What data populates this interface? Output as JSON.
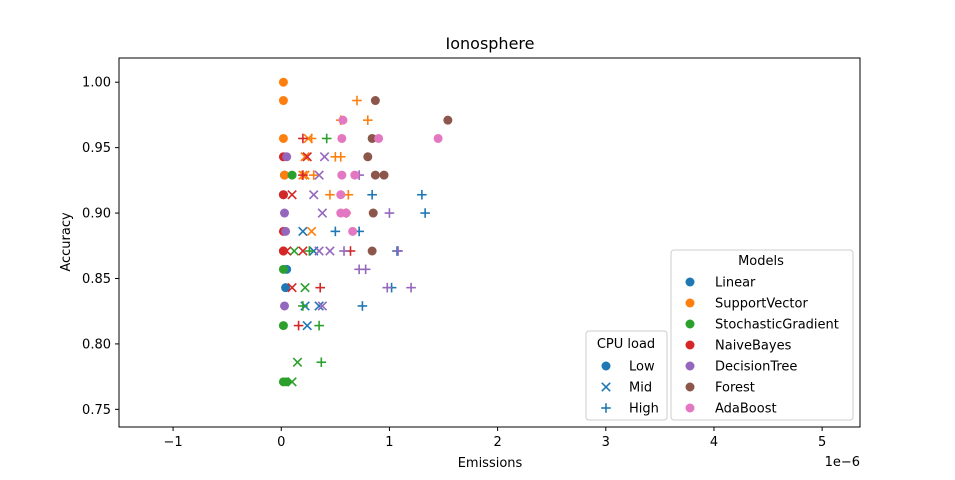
{
  "chart_data": {
    "type": "scatter",
    "title": "Ionosphere",
    "xlabel": "Emissions",
    "ylabel": "Accuracy",
    "x_offset_label": "1e−6",
    "x_scale_factor": 1e-06,
    "xlim": [
      -1.5,
      5.35
    ],
    "ylim": [
      0.7365,
      1.0185
    ],
    "x_ticks": [
      -1,
      0,
      1,
      2,
      3,
      4,
      5
    ],
    "x_tick_labels": [
      "−1",
      "0",
      "1",
      "2",
      "3",
      "4",
      "5"
    ],
    "y_ticks": [
      0.75,
      0.8,
      0.85,
      0.9,
      0.95,
      1.0
    ],
    "y_tick_labels": [
      "0.75",
      "0.80",
      "0.85",
      "0.90",
      "0.95",
      "1.00"
    ],
    "grid": false,
    "legend_models": {
      "title": "Models",
      "placement": "lower-right",
      "entries": [
        {
          "name": "Linear",
          "color": "#1f77b4"
        },
        {
          "name": "SupportVector",
          "color": "#ff7f0e"
        },
        {
          "name": "StochasticGradient",
          "color": "#2ca02c"
        },
        {
          "name": "NaiveBayes",
          "color": "#d62728"
        },
        {
          "name": "DecisionTree",
          "color": "#9467bd"
        },
        {
          "name": "Forest",
          "color": "#8c564b"
        },
        {
          "name": "AdaBoost",
          "color": "#e377c2"
        }
      ]
    },
    "legend_cpu": {
      "title": "CPU load",
      "placement": "lower-right",
      "entries": [
        {
          "name": "Low",
          "marker": "circle"
        },
        {
          "name": "Mid",
          "marker": "x"
        },
        {
          "name": "High",
          "marker": "plus"
        }
      ]
    },
    "series": [
      {
        "model": "Linear",
        "cpu": "Low",
        "points": [
          [
            0.02,
            0.914
          ],
          [
            0.03,
            0.929
          ],
          [
            0.04,
            0.843
          ],
          [
            0.05,
            0.857
          ],
          [
            0.02,
            0.871
          ]
        ]
      },
      {
        "model": "Linear",
        "cpu": "Mid",
        "points": [
          [
            0.22,
            0.829
          ],
          [
            0.24,
            0.814
          ],
          [
            0.3,
            0.871
          ],
          [
            0.2,
            0.886
          ],
          [
            0.35,
            0.829
          ]
        ]
      },
      {
        "model": "Linear",
        "cpu": "High",
        "points": [
          [
            1.3,
            0.914
          ],
          [
            1.33,
            0.9
          ],
          [
            0.84,
            0.914
          ],
          [
            1.02,
            0.843
          ],
          [
            0.75,
            0.829
          ],
          [
            1.07,
            0.871
          ],
          [
            0.5,
            0.886
          ],
          [
            0.72,
            0.886
          ]
        ]
      },
      {
        "model": "SupportVector",
        "cpu": "Low",
        "points": [
          [
            0.02,
            1.0
          ],
          [
            0.02,
            0.986
          ],
          [
            0.02,
            0.957
          ],
          [
            0.03,
            0.929
          ],
          [
            0.02,
            0.871
          ]
        ]
      },
      {
        "model": "SupportVector",
        "cpu": "Mid",
        "points": [
          [
            0.25,
            0.957
          ],
          [
            0.22,
            0.943
          ],
          [
            0.2,
            0.929
          ],
          [
            0.28,
            0.886
          ],
          [
            0.22,
            0.929
          ]
        ]
      },
      {
        "model": "SupportVector",
        "cpu": "High",
        "points": [
          [
            0.7,
            0.986
          ],
          [
            0.8,
            0.971
          ],
          [
            0.55,
            0.971
          ],
          [
            0.28,
            0.957
          ],
          [
            0.55,
            0.943
          ],
          [
            0.5,
            0.943
          ],
          [
            0.3,
            0.929
          ],
          [
            0.62,
            0.914
          ],
          [
            0.45,
            0.914
          ],
          [
            0.6,
            0.9
          ]
        ]
      },
      {
        "model": "StochasticGradient",
        "cpu": "Low",
        "points": [
          [
            0.02,
            0.857
          ],
          [
            0.02,
            0.814
          ],
          [
            0.02,
            0.771
          ],
          [
            0.1,
            0.929
          ],
          [
            0.05,
            0.771
          ]
        ]
      },
      {
        "model": "StochasticGradient",
        "cpu": "Mid",
        "points": [
          [
            0.1,
            0.771
          ],
          [
            0.15,
            0.786
          ],
          [
            0.22,
            0.843
          ],
          [
            0.12,
            0.871
          ]
        ]
      },
      {
        "model": "StochasticGradient",
        "cpu": "High",
        "points": [
          [
            0.37,
            0.786
          ],
          [
            0.35,
            0.814
          ],
          [
            0.2,
            0.829
          ],
          [
            0.42,
            0.957
          ],
          [
            0.26,
            0.871
          ]
        ]
      },
      {
        "model": "NaiveBayes",
        "cpu": "Low",
        "points": [
          [
            0.02,
            0.943
          ],
          [
            0.02,
            0.914
          ],
          [
            0.02,
            0.886
          ],
          [
            0.02,
            0.871
          ]
        ]
      },
      {
        "model": "NaiveBayes",
        "cpu": "Mid",
        "points": [
          [
            0.1,
            0.914
          ],
          [
            0.24,
            0.943
          ],
          [
            0.1,
            0.843
          ],
          [
            0.05,
            0.871
          ],
          [
            0.2,
            0.871
          ]
        ]
      },
      {
        "model": "NaiveBayes",
        "cpu": "High",
        "points": [
          [
            0.2,
            0.957
          ],
          [
            0.36,
            0.843
          ],
          [
            0.16,
            0.814
          ],
          [
            0.64,
            0.871
          ],
          [
            0.2,
            0.929
          ]
        ]
      },
      {
        "model": "DecisionTree",
        "cpu": "Low",
        "points": [
          [
            0.03,
            0.9
          ],
          [
            0.03,
            0.829
          ],
          [
            0.04,
            0.886
          ],
          [
            0.05,
            0.943
          ]
        ]
      },
      {
        "model": "DecisionTree",
        "cpu": "Mid",
        "points": [
          [
            0.3,
            0.914
          ],
          [
            0.38,
            0.9
          ],
          [
            0.35,
            0.871
          ],
          [
            0.45,
            0.871
          ],
          [
            0.38,
            0.829
          ],
          [
            0.35,
            0.929
          ],
          [
            0.4,
            0.943
          ]
        ]
      },
      {
        "model": "DecisionTree",
        "cpu": "High",
        "points": [
          [
            0.58,
            0.871
          ],
          [
            0.72,
            0.857
          ],
          [
            0.78,
            0.857
          ],
          [
            0.98,
            0.843
          ],
          [
            1.2,
            0.843
          ],
          [
            1.0,
            0.9
          ],
          [
            1.08,
            0.871
          ],
          [
            0.72,
            0.929
          ]
        ]
      },
      {
        "model": "Forest",
        "cpu": "Low",
        "points": [
          [
            0.87,
            0.986
          ],
          [
            1.54,
            0.971
          ],
          [
            0.84,
            0.957
          ],
          [
            0.8,
            0.943
          ],
          [
            0.87,
            0.929
          ],
          [
            0.95,
            0.929
          ],
          [
            0.85,
            0.9
          ],
          [
            0.84,
            0.871
          ]
        ]
      },
      {
        "model": "AdaBoost",
        "cpu": "Low",
        "points": [
          [
            0.57,
            0.971
          ],
          [
            0.56,
            0.957
          ],
          [
            0.9,
            0.957
          ],
          [
            1.45,
            0.957
          ],
          [
            0.56,
            0.929
          ],
          [
            0.68,
            0.929
          ],
          [
            0.55,
            0.914
          ],
          [
            0.55,
            0.9
          ],
          [
            0.6,
            0.9
          ],
          [
            0.66,
            0.886
          ]
        ]
      }
    ]
  }
}
